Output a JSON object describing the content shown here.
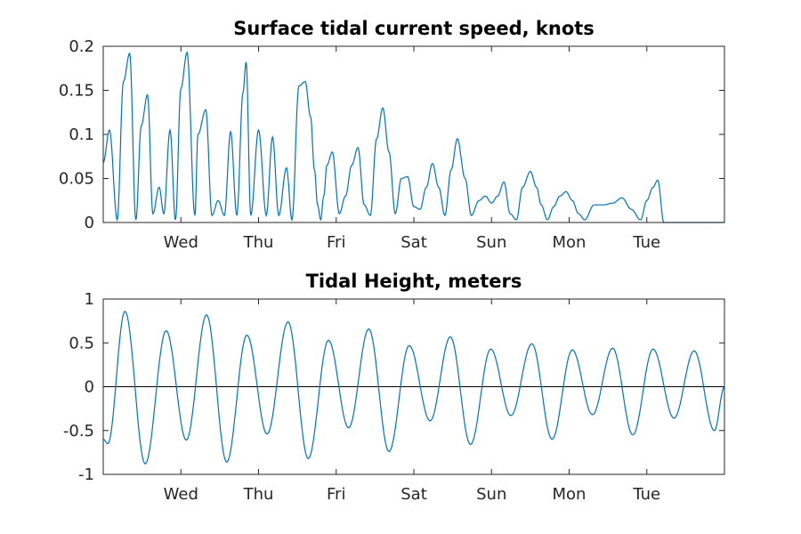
{
  "chart_data": [
    {
      "type": "line",
      "title": "Surface tidal current speed, knots",
      "xlabel": "",
      "ylabel": "",
      "xlim": [
        0,
        8
      ],
      "ylim": [
        0,
        0.2
      ],
      "yticks": [
        "0",
        "0.05",
        "0.1",
        "0.15",
        "0.2"
      ],
      "ytick_values": [
        0,
        0.05,
        0.1,
        0.15,
        0.2
      ],
      "xtick_labels": [
        "Wed",
        "Thu",
        "Fri",
        "Sat",
        "Sun",
        "Mon",
        "Tue"
      ],
      "xtick_values": [
        1,
        2,
        3,
        4,
        5,
        6,
        7
      ],
      "grid": false,
      "legend": "none",
      "series": [
        {
          "color": "#0072BD",
          "x": [
            0.0,
            0.08,
            0.18,
            0.26,
            0.34,
            0.42,
            0.49,
            0.57,
            0.64,
            0.72,
            0.78,
            0.86,
            0.93,
            1.0,
            1.08,
            1.18,
            1.22,
            1.32,
            1.4,
            1.48,
            1.56,
            1.64,
            1.72,
            1.8,
            1.84,
            1.9,
            2.0,
            2.1,
            2.18,
            2.26,
            2.36,
            2.43,
            2.52,
            2.6,
            2.67,
            2.72,
            2.76,
            2.8,
            2.84,
            2.88,
            2.95,
            3.04,
            3.12,
            3.2,
            3.28,
            3.36,
            3.44,
            3.52,
            3.6,
            3.68,
            3.76,
            3.84,
            3.92,
            4.0,
            4.08,
            4.16,
            4.24,
            4.32,
            4.4,
            4.48,
            4.56,
            4.66,
            4.74,
            4.84,
            4.92,
            5.0,
            5.08,
            5.16,
            5.24,
            5.32,
            5.4,
            5.5,
            5.58,
            5.64,
            5.72,
            5.8,
            5.88,
            5.96,
            6.04,
            6.12,
            6.2,
            6.32,
            6.44,
            6.56,
            6.68,
            6.8,
            6.92,
            7.0,
            7.08,
            7.14,
            7.22,
            7.3,
            7.4,
            7.5,
            7.6,
            7.7,
            7.78,
            7.86,
            7.94,
            8.0
          ],
          "y": [
            0.068,
            0.105,
            0.003,
            0.16,
            0.192,
            0.003,
            0.11,
            0.145,
            0.01,
            0.04,
            0.01,
            0.105,
            0.003,
            0.152,
            0.193,
            0.008,
            0.1,
            0.128,
            0.008,
            0.025,
            0.008,
            0.103,
            0.008,
            0.148,
            0.182,
            0.008,
            0.105,
            0.008,
            0.097,
            0.008,
            0.062,
            0.003,
            0.155,
            0.16,
            0.12,
            0.06,
            0.02,
            0.003,
            0.03,
            0.065,
            0.08,
            0.01,
            0.03,
            0.065,
            0.085,
            0.02,
            0.008,
            0.095,
            0.13,
            0.08,
            0.01,
            0.05,
            0.052,
            0.018,
            0.015,
            0.04,
            0.067,
            0.04,
            0.008,
            0.06,
            0.095,
            0.05,
            0.008,
            0.025,
            0.03,
            0.022,
            0.03,
            0.046,
            0.01,
            0.003,
            0.04,
            0.058,
            0.04,
            0.02,
            0.003,
            0.018,
            0.03,
            0.035,
            0.025,
            0.01,
            0.003,
            0.02,
            0.02,
            0.022,
            0.028,
            0.015,
            0.003,
            0.025,
            0.04,
            0.048,
            0.0,
            0.0,
            0.0,
            0.0,
            0.0,
            0.0,
            0.0,
            0.0,
            0.0,
            0.0
          ]
        }
      ]
    },
    {
      "type": "line",
      "title": "Tidal Height, meters",
      "xlabel": "",
      "ylabel": "",
      "xlim": [
        0,
        8
      ],
      "ylim": [
        -1,
        1
      ],
      "yticks": [
        "-1",
        "-0.5",
        "0",
        "0.5",
        "1"
      ],
      "ytick_values": [
        -1,
        -0.5,
        0,
        0.5,
        1
      ],
      "xtick_labels": [
        "Wed",
        "Thu",
        "Fri",
        "Sat",
        "Sun",
        "Mon",
        "Tue"
      ],
      "xtick_values": [
        1,
        2,
        3,
        4,
        5,
        6,
        7
      ],
      "grid": false,
      "legend": "none",
      "zero_line": true,
      "series": [
        {
          "color": "#0072BD",
          "x": [
            0.0,
            0.06,
            0.28,
            0.54,
            0.81,
            1.07,
            1.33,
            1.59,
            1.85,
            2.11,
            2.38,
            2.64,
            2.9,
            3.16,
            3.42,
            3.68,
            3.94,
            4.21,
            4.47,
            4.73,
            4.99,
            5.25,
            5.52,
            5.78,
            6.04,
            6.3,
            6.56,
            6.82,
            7.08,
            7.35,
            7.61,
            7.87,
            8.0
          ],
          "y": [
            -0.6,
            -0.65,
            0.86,
            -0.88,
            0.64,
            -0.61,
            0.82,
            -0.86,
            0.59,
            -0.54,
            0.74,
            -0.82,
            0.53,
            -0.47,
            0.66,
            -0.74,
            0.47,
            -0.39,
            0.57,
            -0.66,
            0.43,
            -0.33,
            0.49,
            -0.6,
            0.42,
            -0.32,
            0.44,
            -0.55,
            0.43,
            -0.36,
            0.41,
            -0.5,
            0.0
          ]
        }
      ]
    }
  ]
}
